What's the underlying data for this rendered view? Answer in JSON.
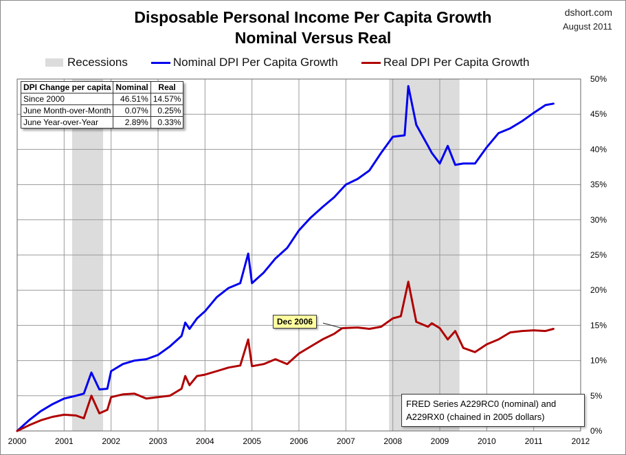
{
  "header": {
    "title_line1": "Disposable Personal Income Per Capita Growth",
    "title_line2": "Nominal Versus Real",
    "brand": "dshort.com",
    "date": "August 2011"
  },
  "legend": {
    "recessions": "Recessions",
    "nominal": "Nominal DPI Per Capita Growth",
    "real": "Real DPI Per Capita Growth"
  },
  "stats_table": {
    "headers": [
      "DPI Change per capita",
      "Nominal",
      "Real"
    ],
    "rows": [
      [
        "Since 2000",
        "46.51%",
        "14.57%"
      ],
      [
        "June Month-over-Month",
        "0.07%",
        "0.25%"
      ],
      [
        "June Year-over-Year",
        "2.89%",
        "0.33%"
      ]
    ]
  },
  "source_note": {
    "line1": "FRED Series A229RC0 (nominal) and",
    "line2": "A229RX0 (chained in 2005 dollars)"
  },
  "annotation": "Dec 2006",
  "colors": {
    "nominal": "#0000ee",
    "real": "#b00000",
    "recession": "#dcdcdc",
    "grid": "#999999"
  },
  "chart_data": {
    "type": "line",
    "title": "Disposable Personal Income Per Capita Growth Nominal Versus Real",
    "xlim": [
      2000,
      2012
    ],
    "ylim": [
      0,
      50
    ],
    "x_ticks": [
      "2000",
      "2001",
      "2002",
      "2003",
      "2004",
      "2005",
      "2006",
      "2007",
      "2008",
      "2009",
      "2010",
      "2011",
      "2012"
    ],
    "y_ticks": [
      "0%",
      "5%",
      "10%",
      "15%",
      "20%",
      "25%",
      "30%",
      "35%",
      "40%",
      "45%",
      "50%"
    ],
    "y_axis_side": "right",
    "grid": true,
    "recessions": [
      [
        2001.17,
        2001.83
      ],
      [
        2007.92,
        2009.42
      ]
    ],
    "annotation": {
      "label": "Dec 2006",
      "x": 2006.92,
      "y": 14.6
    },
    "series": [
      {
        "name": "Nominal DPI Per Capita Growth",
        "color": "#0000ee",
        "points": [
          [
            2000.0,
            0.0
          ],
          [
            2000.25,
            1.5
          ],
          [
            2000.5,
            2.8
          ],
          [
            2000.75,
            3.8
          ],
          [
            2001.0,
            4.6
          ],
          [
            2001.25,
            5.0
          ],
          [
            2001.42,
            5.3
          ],
          [
            2001.58,
            8.3
          ],
          [
            2001.75,
            5.9
          ],
          [
            2001.92,
            6.0
          ],
          [
            2002.0,
            8.5
          ],
          [
            2002.25,
            9.5
          ],
          [
            2002.5,
            10.0
          ],
          [
            2002.75,
            10.2
          ],
          [
            2003.0,
            10.8
          ],
          [
            2003.25,
            12.0
          ],
          [
            2003.5,
            13.5
          ],
          [
            2003.58,
            15.4
          ],
          [
            2003.67,
            14.5
          ],
          [
            2003.83,
            16.0
          ],
          [
            2004.0,
            17.0
          ],
          [
            2004.25,
            19.0
          ],
          [
            2004.5,
            20.3
          ],
          [
            2004.75,
            21.0
          ],
          [
            2004.92,
            25.2
          ],
          [
            2005.0,
            21.0
          ],
          [
            2005.25,
            22.5
          ],
          [
            2005.5,
            24.5
          ],
          [
            2005.75,
            26.0
          ],
          [
            2006.0,
            28.5
          ],
          [
            2006.25,
            30.3
          ],
          [
            2006.5,
            31.8
          ],
          [
            2006.75,
            33.2
          ],
          [
            2007.0,
            35.0
          ],
          [
            2007.25,
            35.8
          ],
          [
            2007.5,
            37.0
          ],
          [
            2007.75,
            39.5
          ],
          [
            2008.0,
            41.8
          ],
          [
            2008.25,
            42.0
          ],
          [
            2008.33,
            49.0
          ],
          [
            2008.5,
            43.5
          ],
          [
            2008.75,
            40.5
          ],
          [
            2008.83,
            39.5
          ],
          [
            2009.0,
            38.0
          ],
          [
            2009.17,
            40.5
          ],
          [
            2009.33,
            37.8
          ],
          [
            2009.5,
            38.0
          ],
          [
            2009.75,
            38.0
          ],
          [
            2010.0,
            40.3
          ],
          [
            2010.25,
            42.3
          ],
          [
            2010.5,
            43.0
          ],
          [
            2010.75,
            44.0
          ],
          [
            2011.0,
            45.2
          ],
          [
            2011.25,
            46.3
          ],
          [
            2011.42,
            46.5
          ]
        ]
      },
      {
        "name": "Real DPI Per Capita Growth",
        "color": "#b00000",
        "points": [
          [
            2000.0,
            0.0
          ],
          [
            2000.25,
            0.8
          ],
          [
            2000.5,
            1.5
          ],
          [
            2000.75,
            2.0
          ],
          [
            2001.0,
            2.3
          ],
          [
            2001.25,
            2.2
          ],
          [
            2001.42,
            1.8
          ],
          [
            2001.58,
            5.0
          ],
          [
            2001.75,
            2.5
          ],
          [
            2001.92,
            3.0
          ],
          [
            2002.0,
            4.8
          ],
          [
            2002.25,
            5.2
          ],
          [
            2002.5,
            5.3
          ],
          [
            2002.75,
            4.6
          ],
          [
            2003.0,
            4.8
          ],
          [
            2003.25,
            5.0
          ],
          [
            2003.5,
            6.0
          ],
          [
            2003.58,
            7.8
          ],
          [
            2003.67,
            6.5
          ],
          [
            2003.83,
            7.8
          ],
          [
            2004.0,
            8.0
          ],
          [
            2004.25,
            8.5
          ],
          [
            2004.5,
            9.0
          ],
          [
            2004.75,
            9.3
          ],
          [
            2004.92,
            13.0
          ],
          [
            2005.0,
            9.2
          ],
          [
            2005.25,
            9.5
          ],
          [
            2005.5,
            10.2
          ],
          [
            2005.75,
            9.5
          ],
          [
            2006.0,
            11.0
          ],
          [
            2006.25,
            12.0
          ],
          [
            2006.5,
            13.0
          ],
          [
            2006.75,
            13.8
          ],
          [
            2006.92,
            14.6
          ],
          [
            2007.25,
            14.7
          ],
          [
            2007.5,
            14.5
          ],
          [
            2007.75,
            14.8
          ],
          [
            2008.0,
            16.0
          ],
          [
            2008.17,
            16.3
          ],
          [
            2008.33,
            21.2
          ],
          [
            2008.5,
            15.5
          ],
          [
            2008.75,
            14.8
          ],
          [
            2008.83,
            15.3
          ],
          [
            2009.0,
            14.6
          ],
          [
            2009.17,
            13.0
          ],
          [
            2009.33,
            14.2
          ],
          [
            2009.5,
            11.8
          ],
          [
            2009.75,
            11.2
          ],
          [
            2010.0,
            12.3
          ],
          [
            2010.25,
            13.0
          ],
          [
            2010.5,
            14.0
          ],
          [
            2010.75,
            14.2
          ],
          [
            2011.0,
            14.3
          ],
          [
            2011.25,
            14.2
          ],
          [
            2011.42,
            14.5
          ]
        ]
      }
    ]
  }
}
